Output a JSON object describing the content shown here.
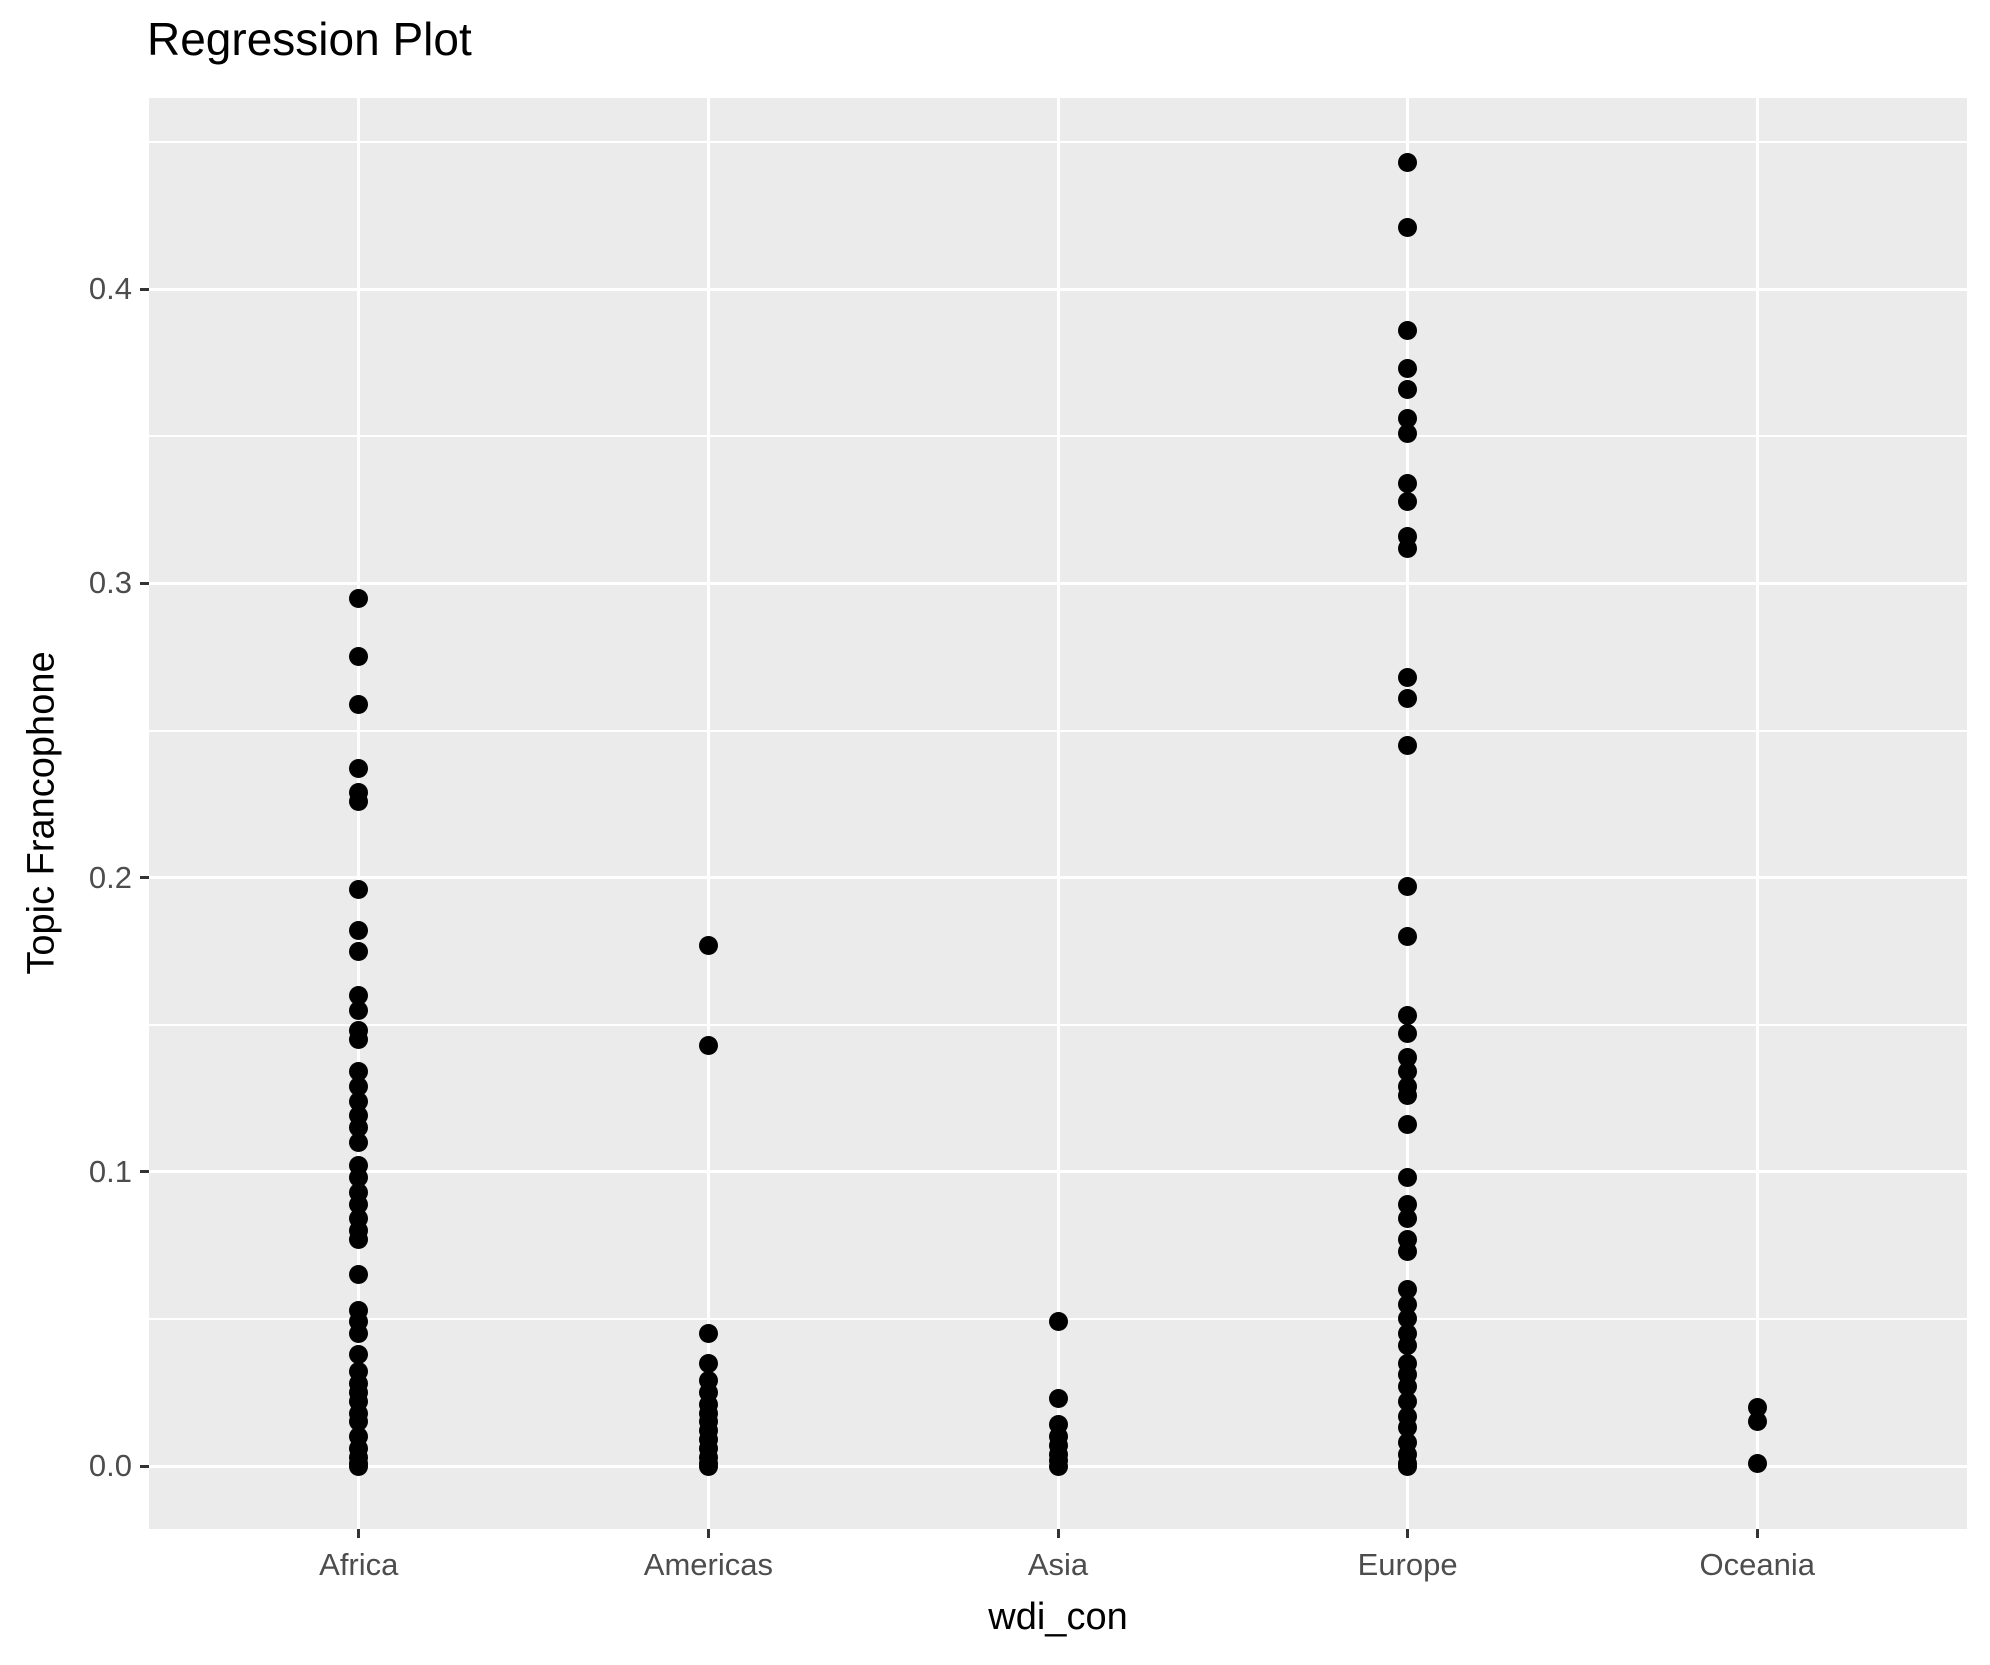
{
  "title": "Regression Plot",
  "chart_data": {
    "type": "scatter",
    "title": "Regression Plot",
    "xlabel": "wdi_con",
    "ylabel": "Topic Francophone",
    "categories": [
      "Africa",
      "Americas",
      "Asia",
      "Europe",
      "Oceania"
    ],
    "y_tick_values": [
      0.0,
      0.1,
      0.2,
      0.3,
      0.4
    ],
    "y_tick_labels": [
      "0.0",
      "0.1",
      "0.2",
      "0.3",
      "0.4"
    ],
    "y_minor_grid_values": [
      0.05,
      0.15,
      0.25,
      0.35,
      0.45
    ],
    "ylim": [
      -0.0214,
      0.465
    ],
    "grid": "on",
    "legend": "none",
    "point_color": "#000000",
    "panel_background": "#EBEBEB",
    "gridline_color": "#FFFFFF",
    "tick_text_color": "#4D4D4D",
    "series": [
      {
        "name": "Africa",
        "values": [
          0.295,
          0.275,
          0.259,
          0.237,
          0.229,
          0.226,
          0.196,
          0.182,
          0.175,
          0.16,
          0.155,
          0.148,
          0.145,
          0.134,
          0.129,
          0.124,
          0.119,
          0.115,
          0.11,
          0.102,
          0.098,
          0.093,
          0.089,
          0.084,
          0.08,
          0.077,
          0.065,
          0.053,
          0.049,
          0.045,
          0.038,
          0.032,
          0.028,
          0.025,
          0.022,
          0.018,
          0.015,
          0.01,
          0.006,
          0.003,
          0.001,
          0.0
        ]
      },
      {
        "name": "Americas",
        "values": [
          0.177,
          0.143,
          0.045,
          0.035,
          0.029,
          0.025,
          0.021,
          0.018,
          0.015,
          0.012,
          0.009,
          0.006,
          0.003,
          0.001,
          0.0
        ]
      },
      {
        "name": "Asia",
        "values": [
          0.049,
          0.023,
          0.014,
          0.01,
          0.007,
          0.004,
          0.002,
          0.0
        ]
      },
      {
        "name": "Europe",
        "values": [
          0.443,
          0.421,
          0.386,
          0.373,
          0.366,
          0.356,
          0.351,
          0.334,
          0.328,
          0.316,
          0.312,
          0.268,
          0.261,
          0.245,
          0.197,
          0.18,
          0.153,
          0.147,
          0.139,
          0.134,
          0.129,
          0.126,
          0.116,
          0.098,
          0.089,
          0.084,
          0.077,
          0.073,
          0.06,
          0.055,
          0.05,
          0.045,
          0.041,
          0.035,
          0.031,
          0.027,
          0.022,
          0.017,
          0.013,
          0.008,
          0.004,
          0.001,
          0.0
        ]
      },
      {
        "name": "Oceania",
        "values": [
          0.02,
          0.015,
          0.001
        ]
      }
    ]
  }
}
